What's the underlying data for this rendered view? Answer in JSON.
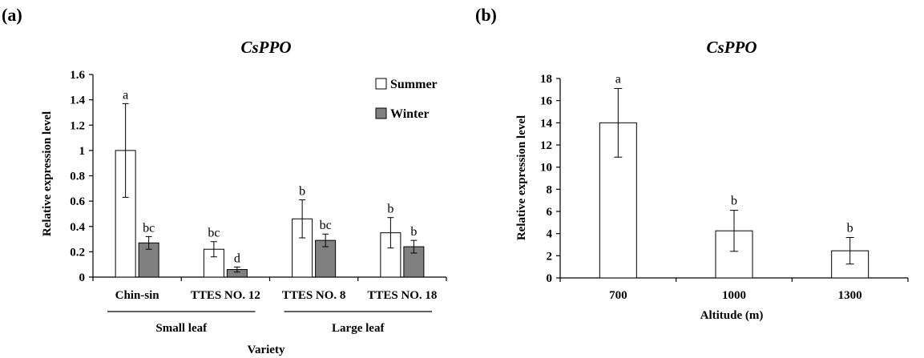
{
  "panels": {
    "a_label": "(a)",
    "b_label": "(b)"
  },
  "chart_data": [
    {
      "type": "bar",
      "title": "CsPPO",
      "xlabel": "Variety",
      "ylabel": "Relative expression level",
      "ylim": [
        0,
        1.6
      ],
      "yticks": [
        "0",
        "0.2",
        "0.4",
        "0.6",
        "0.8",
        "1",
        "1.2",
        "1.4",
        "1.6"
      ],
      "categories": [
        "Chin-sin",
        "TTES NO. 12",
        "TTES NO. 8",
        "TTES NO. 18"
      ],
      "groups": [
        {
          "label": "Small leaf",
          "categories": [
            "Chin-sin",
            "TTES NO. 12"
          ]
        },
        {
          "label": "Large leaf",
          "categories": [
            "TTES NO. 8",
            "TTES NO. 18"
          ]
        }
      ],
      "series": [
        {
          "name": "Summer",
          "color": "#ffffff",
          "values": [
            1.0,
            0.22,
            0.46,
            0.35
          ],
          "errors": [
            0.37,
            0.06,
            0.15,
            0.12
          ],
          "letters": [
            "a",
            "bc",
            "b",
            "b"
          ]
        },
        {
          "name": "Winter",
          "color": "#808080",
          "values": [
            0.27,
            0.06,
            0.29,
            0.24
          ],
          "errors": [
            0.05,
            0.02,
            0.05,
            0.05
          ],
          "letters": [
            "bc",
            "d",
            "bc",
            "b"
          ]
        }
      ],
      "legend_position": "top-right",
      "grid": false
    },
    {
      "type": "bar",
      "title": "CsPPO",
      "xlabel": "Altitude (m)",
      "ylabel": "Relative expression level",
      "ylim": [
        0,
        18
      ],
      "yticks": [
        "0",
        "2",
        "4",
        "6",
        "8",
        "10",
        "12",
        "14",
        "16",
        "18"
      ],
      "categories": [
        "700",
        "1000",
        "1300"
      ],
      "series": [
        {
          "color": "#ffffff",
          "values": [
            14.0,
            4.25,
            2.45
          ],
          "errors": [
            3.1,
            1.85,
            1.2
          ],
          "letters": [
            "a",
            "b",
            "b"
          ]
        }
      ],
      "grid": false
    }
  ]
}
